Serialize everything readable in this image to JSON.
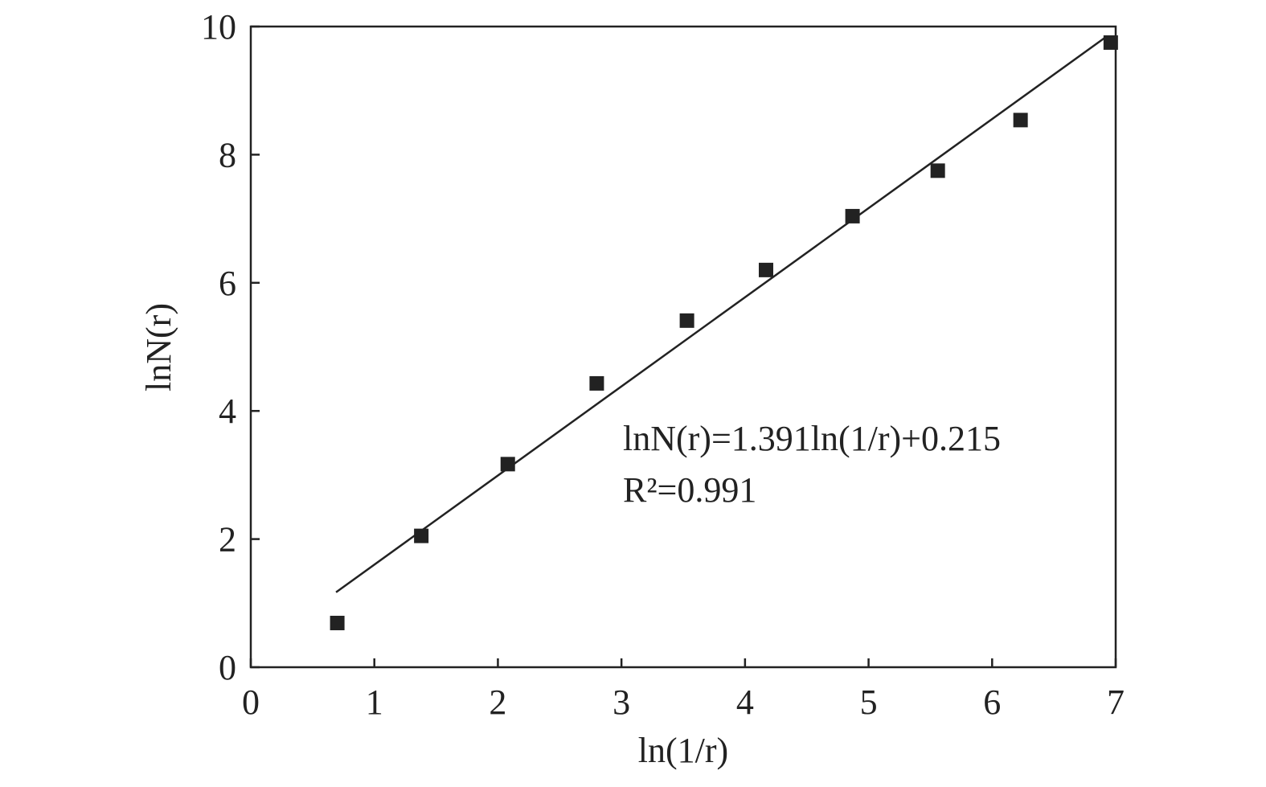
{
  "chart_data": {
    "type": "scatter",
    "xlabel": "ln(1/r)",
    "ylabel": "lnN(r)",
    "annotations": [
      "lnN(r)=1.391ln(1/r)+0.215",
      "R²=0.991"
    ],
    "xlim": [
      0,
      7
    ],
    "xticks": [
      0,
      1,
      2,
      3,
      4,
      5,
      6,
      7
    ],
    "ylim": [
      0,
      10
    ],
    "yticks": [
      0,
      2,
      4,
      6,
      8,
      10
    ],
    "grid": false,
    "series": [
      {
        "type": "scatter",
        "color": "#222222",
        "x": [
          0.7,
          1.38,
          2.08,
          2.8,
          3.53,
          4.17,
          4.87,
          5.56,
          6.23,
          6.96
        ],
        "values": [
          0.69,
          2.05,
          3.17,
          4.43,
          5.41,
          6.2,
          7.04,
          7.75,
          8.54,
          9.75
        ]
      },
      {
        "type": "line",
        "color": "#222222",
        "x": [
          0.69,
          6.93
        ],
        "values": [
          1.17,
          9.85
        ]
      }
    ]
  }
}
